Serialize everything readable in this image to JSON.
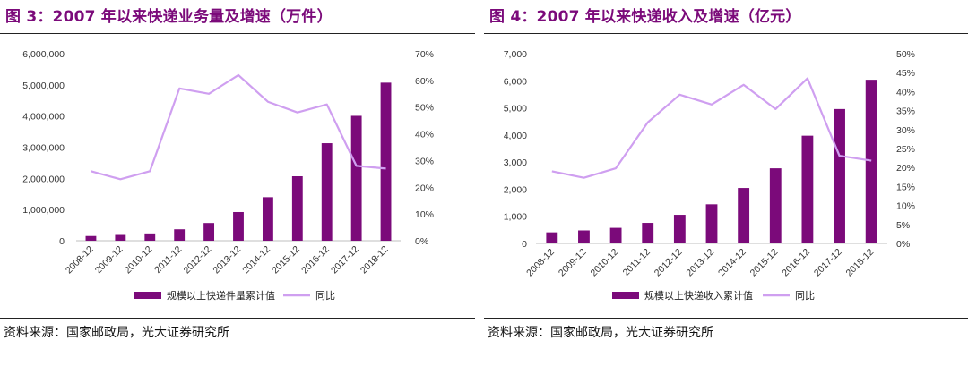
{
  "colors": {
    "bar": "#7b0a7a",
    "line": "#cf9ff0",
    "title": "#7b0a7a"
  },
  "figures": [
    {
      "title": "图 3：2007 年以来快递业务量及增速（万件）",
      "source": "资料来源：国家邮政局，光大证券研究所"
    },
    {
      "title": "图 4：2007 年以来快递收入及增速（亿元）",
      "source": "资料来源：国家邮政局，光大证券研究所"
    }
  ],
  "chart_data": [
    {
      "type": "bar",
      "categories": [
        "2008-12",
        "2009-12",
        "2010-12",
        "2011-12",
        "2012-12",
        "2013-12",
        "2014-12",
        "2015-12",
        "2016-12",
        "2017-12",
        "2018-12"
      ],
      "series": [
        {
          "name": "规模以上快递件量累计值",
          "type": "bar",
          "axis": "left",
          "values": [
            151000,
            186000,
            234000,
            367000,
            569000,
            919000,
            1396000,
            2067000,
            3128000,
            4006000,
            5071000
          ]
        },
        {
          "name": "同比",
          "type": "line",
          "axis": "right",
          "values": [
            26,
            23,
            26,
            57,
            55,
            62,
            52,
            48,
            51,
            28,
            27
          ]
        }
      ],
      "yleft": {
        "lim": [
          0,
          6000000
        ],
        "ticks": [
          0,
          1000000,
          2000000,
          3000000,
          4000000,
          5000000,
          6000000
        ],
        "tick_labels": [
          "0",
          "1,000,000",
          "2,000,000",
          "3,000,000",
          "4,000,000",
          "5,000,000",
          "6,000,000"
        ]
      },
      "yright": {
        "lim": [
          0,
          70
        ],
        "ticks": [
          0,
          10,
          20,
          30,
          40,
          50,
          60,
          70
        ],
        "tick_labels": [
          "0%",
          "10%",
          "20%",
          "30%",
          "40%",
          "50%",
          "60%",
          "70%"
        ]
      },
      "legend": {
        "position": "bottom",
        "items": [
          "规模以上快递件量累计值",
          "同比"
        ]
      }
    },
    {
      "type": "bar",
      "categories": [
        "2008-12",
        "2009-12",
        "2010-12",
        "2011-12",
        "2012-12",
        "2013-12",
        "2014-12",
        "2015-12",
        "2016-12",
        "2017-12",
        "2018-12"
      ],
      "series": [
        {
          "name": "规模以上快递收入累计值",
          "type": "bar",
          "axis": "left",
          "values": [
            408,
            479,
            575,
            758,
            1055,
            1442,
            2045,
            2770,
            3974,
            4957,
            6038
          ]
        },
        {
          "name": "同比",
          "type": "line",
          "axis": "right",
          "values": [
            19,
            17.3,
            19.8,
            31.9,
            39.2,
            36.6,
            41.8,
            35.4,
            43.5,
            23.1,
            21.8
          ]
        }
      ],
      "yleft": {
        "lim": [
          0,
          7000
        ],
        "ticks": [
          0,
          1000,
          2000,
          3000,
          4000,
          5000,
          6000,
          7000
        ],
        "tick_labels": [
          "0",
          "1,000",
          "2,000",
          "3,000",
          "4,000",
          "5,000",
          "6,000",
          "7,000"
        ]
      },
      "yright": {
        "lim": [
          0,
          50
        ],
        "ticks": [
          0,
          5,
          10,
          15,
          20,
          25,
          30,
          35,
          40,
          45,
          50
        ],
        "tick_labels": [
          "0%",
          "5%",
          "10%",
          "15%",
          "20%",
          "25%",
          "30%",
          "35%",
          "40%",
          "45%",
          "50%"
        ]
      },
      "legend": {
        "position": "bottom",
        "items": [
          "规模以上快递收入累计值",
          "同比"
        ]
      }
    }
  ]
}
